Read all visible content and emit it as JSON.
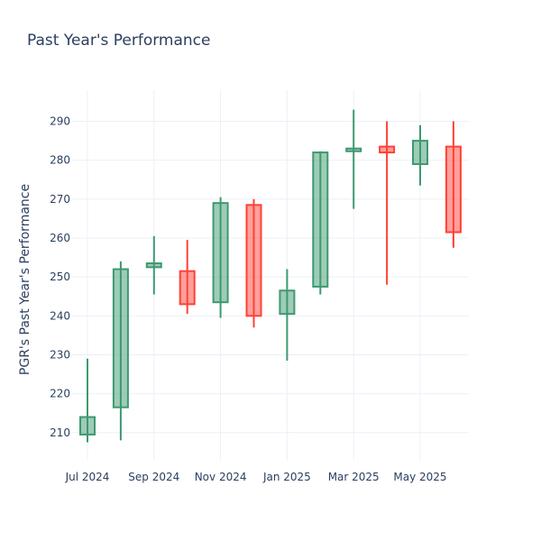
{
  "chart_data": {
    "type": "candlestick",
    "title": "Past Year's Performance",
    "xlabel": "",
    "ylabel": "PGR's Past Year's Performance",
    "ylim": [
      203,
      298
    ],
    "yticks": [
      210,
      220,
      230,
      240,
      250,
      260,
      270,
      280,
      290
    ],
    "xticks": [
      "Jul 2024",
      "Sep 2024",
      "Nov 2024",
      "Jan 2025",
      "Mar 2025",
      "May 2025"
    ],
    "grid": true,
    "colors": {
      "increasing_line": "#3d9970",
      "increasing_fill": "rgba(61,153,112,0.5)",
      "decreasing_line": "#ff4136",
      "decreasing_fill": "rgba(255,65,54,0.5)"
    },
    "candles": [
      {
        "period": "Jul 2024",
        "open": 209.5,
        "high": 229.0,
        "low": 207.5,
        "close": 214.0
      },
      {
        "period": "Aug 2024",
        "open": 216.5,
        "high": 254.0,
        "low": 208.0,
        "close": 252.0
      },
      {
        "period": "Sep 2024",
        "open": 252.5,
        "high": 260.5,
        "low": 245.5,
        "close": 253.5
      },
      {
        "period": "Oct 2024",
        "open": 251.5,
        "high": 259.5,
        "low": 240.5,
        "close": 243.0
      },
      {
        "period": "Nov 2024",
        "open": 243.5,
        "high": 270.5,
        "low": 239.5,
        "close": 269.0
      },
      {
        "period": "Dec 2024",
        "open": 268.5,
        "high": 270.0,
        "low": 237.0,
        "close": 240.0
      },
      {
        "period": "Jan 2025",
        "open": 240.5,
        "high": 252.0,
        "low": 228.5,
        "close": 246.5
      },
      {
        "period": "Feb 2025",
        "open": 247.5,
        "high": 282.3,
        "low": 245.5,
        "close": 282.0
      },
      {
        "period": "Mar 2025",
        "open": 282.3,
        "high": 293.0,
        "low": 267.5,
        "close": 283.0
      },
      {
        "period": "Apr 2025",
        "open": 283.5,
        "high": 290.0,
        "low": 248.0,
        "close": 282.0
      },
      {
        "period": "May 2025",
        "open": 279.0,
        "high": 289.0,
        "low": 273.5,
        "close": 285.0
      },
      {
        "period": "Jun 2025",
        "open": 283.5,
        "high": 290.0,
        "low": 257.5,
        "close": 261.5
      }
    ]
  }
}
